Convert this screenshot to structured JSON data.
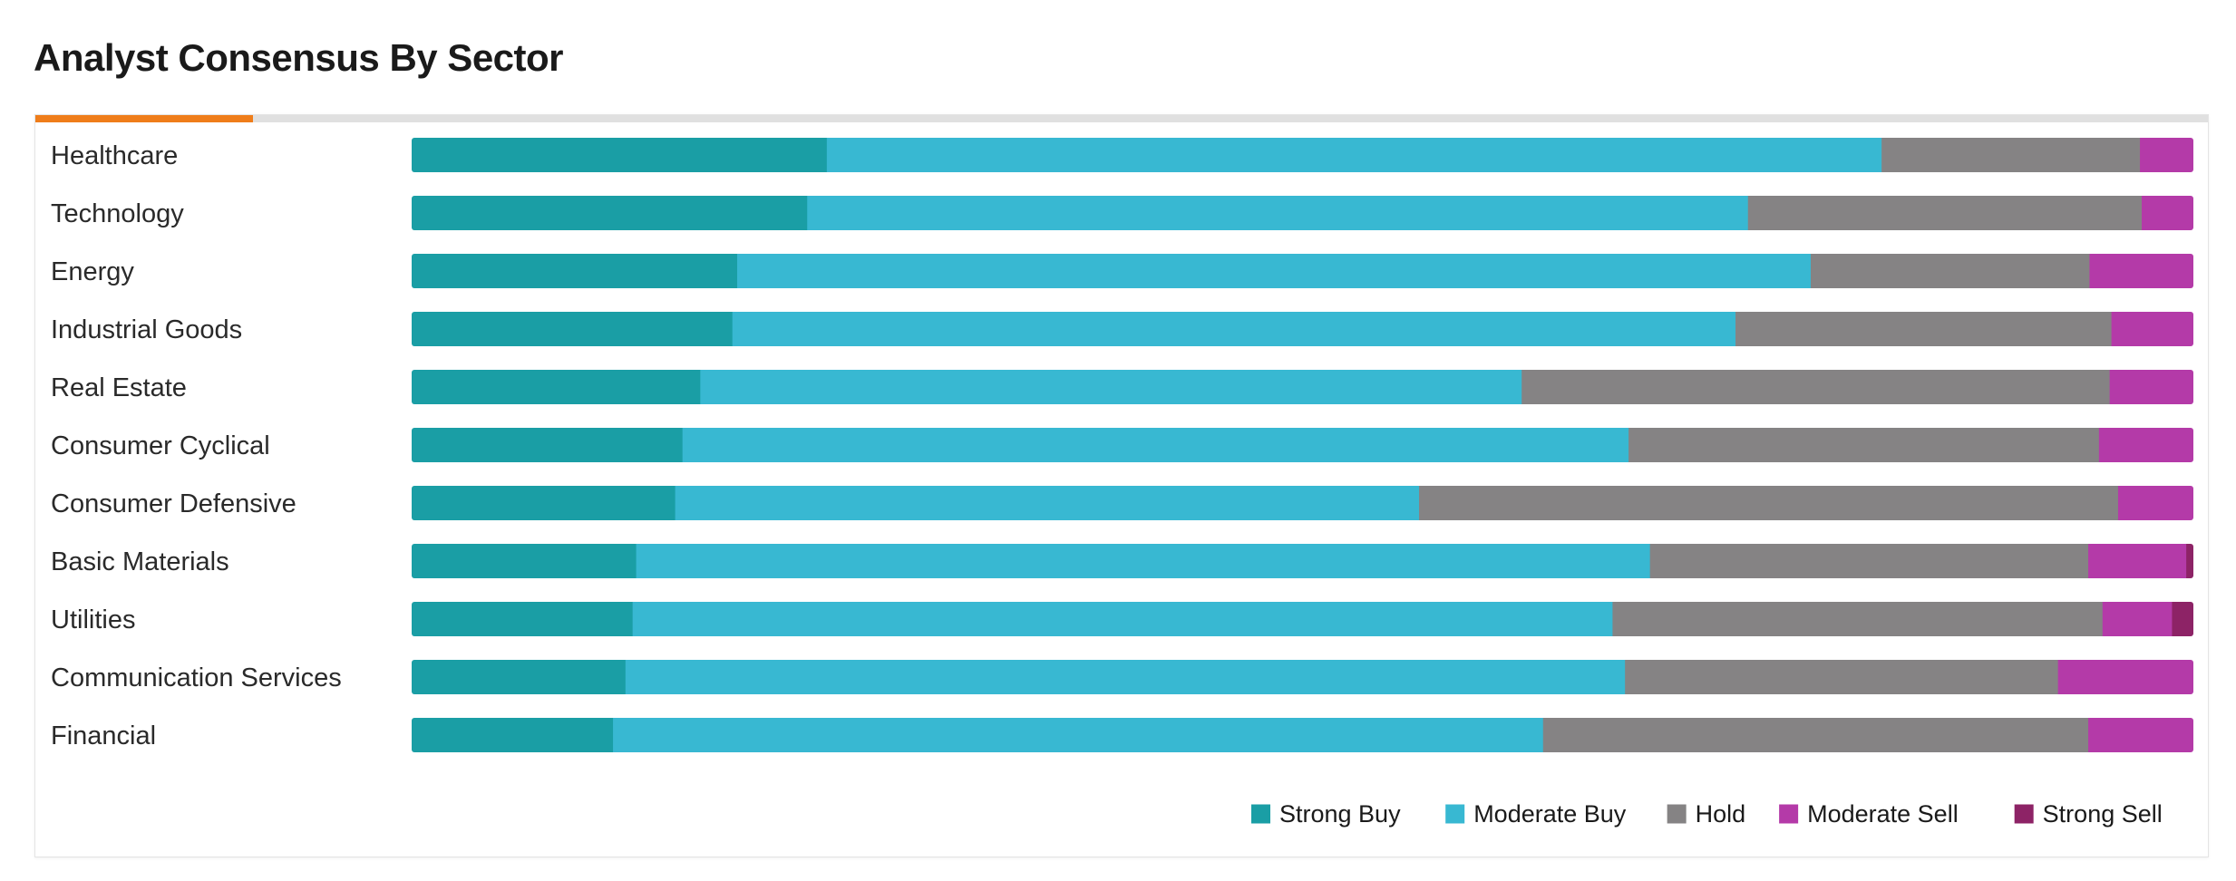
{
  "page": {
    "title": "Analyst Consensus By Sector"
  },
  "colors": {
    "strong_buy": "#1a9ea5",
    "moderate_buy": "#38b8d2",
    "hold": "#858384",
    "moderate_sell": "#b43aa8",
    "strong_sell": "#8d2366",
    "accent": "#ef7d1a"
  },
  "chart_data": {
    "type": "bar",
    "orientation": "horizontal",
    "stacked": true,
    "normalized": "percent",
    "categories": [
      "Healthcare",
      "Technology",
      "Energy",
      "Industrial Goods",
      "Real Estate",
      "Consumer Cyclical",
      "Consumer Defensive",
      "Basic Materials",
      "Utilities",
      "Communication Services",
      "Financial"
    ],
    "series": [
      {
        "name": "Strong Buy",
        "color": "#1a9ea5",
        "values": [
          23.3,
          22.2,
          18.8,
          18.0,
          16.2,
          15.2,
          14.7,
          12.6,
          12.4,
          12.0,
          11.3
        ]
      },
      {
        "name": "Moderate Buy",
        "color": "#38b8d2",
        "values": [
          59.2,
          52.8,
          62.0,
          56.3,
          46.1,
          53.1,
          41.5,
          56.9,
          55.0,
          56.1,
          52.2
        ]
      },
      {
        "name": "Hold",
        "color": "#858384",
        "values": [
          14.5,
          22.1,
          16.1,
          21.1,
          33.0,
          26.4,
          39.0,
          24.6,
          27.5,
          24.3,
          30.6
        ]
      },
      {
        "name": "Moderate Sell",
        "color": "#b43aa8",
        "values": [
          3.0,
          2.9,
          6.0,
          4.6,
          4.7,
          5.3,
          4.2,
          5.5,
          3.9,
          7.6,
          5.9
        ]
      },
      {
        "name": "Strong Sell",
        "color": "#8d2366",
        "values": [
          0,
          0,
          0,
          0,
          0,
          0,
          0,
          0.4,
          1.2,
          0,
          0
        ]
      }
    ],
    "xlim": [
      0,
      100
    ],
    "grid": false,
    "legend_position": "bottom-right"
  }
}
